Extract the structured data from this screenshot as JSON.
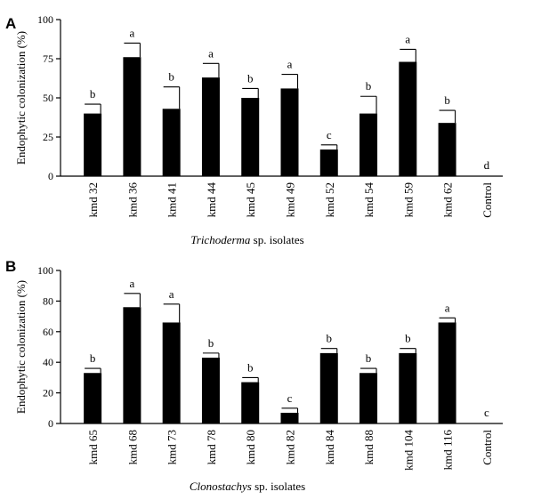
{
  "chart_data": [
    {
      "type": "bar",
      "panel": "A",
      "ylabel": "Endophytic colonization (%)",
      "xlabel_italic": "Trichoderma",
      "xlabel_rest": " sp. isolates",
      "ylim": [
        0,
        100
      ],
      "yticks": [
        "0",
        "25",
        "50",
        "75",
        "100"
      ],
      "ytick_values": [
        0,
        25,
        50,
        75,
        100
      ],
      "categories": [
        "kmd 32",
        "kmd 36",
        "kmd 41",
        "kmd 44",
        "kmd 45",
        "kmd 49",
        "kmd 52",
        "kmd 54",
        "kmd 59",
        "kmd 62",
        "Control"
      ],
      "values": [
        40,
        76,
        43,
        63,
        50,
        56,
        17,
        40,
        73,
        34,
        0
      ],
      "errors": [
        6,
        9,
        14,
        9,
        6,
        9,
        3,
        11,
        8,
        8,
        0
      ],
      "letters": [
        "b",
        "a",
        "b",
        "a",
        "b",
        "a",
        "c",
        "b",
        "a",
        "b",
        "d"
      ]
    },
    {
      "type": "bar",
      "panel": "B",
      "ylabel": "Endophytic colonization (%)",
      "xlabel_italic": "Clonostachys",
      "xlabel_rest": " sp. isolates",
      "ylim": [
        0,
        100
      ],
      "yticks": [
        "0",
        "20",
        "40",
        "60",
        "80",
        "100"
      ],
      "ytick_values": [
        0,
        20,
        40,
        60,
        80,
        100
      ],
      "categories": [
        "kmd 65",
        "kmd 68",
        "kmd 73",
        "kmd 78",
        "kmd 80",
        "kmd 82",
        "kmd 84",
        "kmd 88",
        "kmd 104",
        "kmd 116",
        "Control"
      ],
      "values": [
        33,
        76,
        66,
        43,
        27,
        7,
        46,
        33,
        46,
        66,
        0
      ],
      "errors": [
        3,
        9,
        12,
        3,
        3,
        3,
        3,
        3,
        3,
        3,
        0
      ],
      "letters": [
        "b",
        "a",
        "a",
        "b",
        "b",
        "c",
        "b",
        "b",
        "b",
        "a",
        "c"
      ]
    }
  ]
}
